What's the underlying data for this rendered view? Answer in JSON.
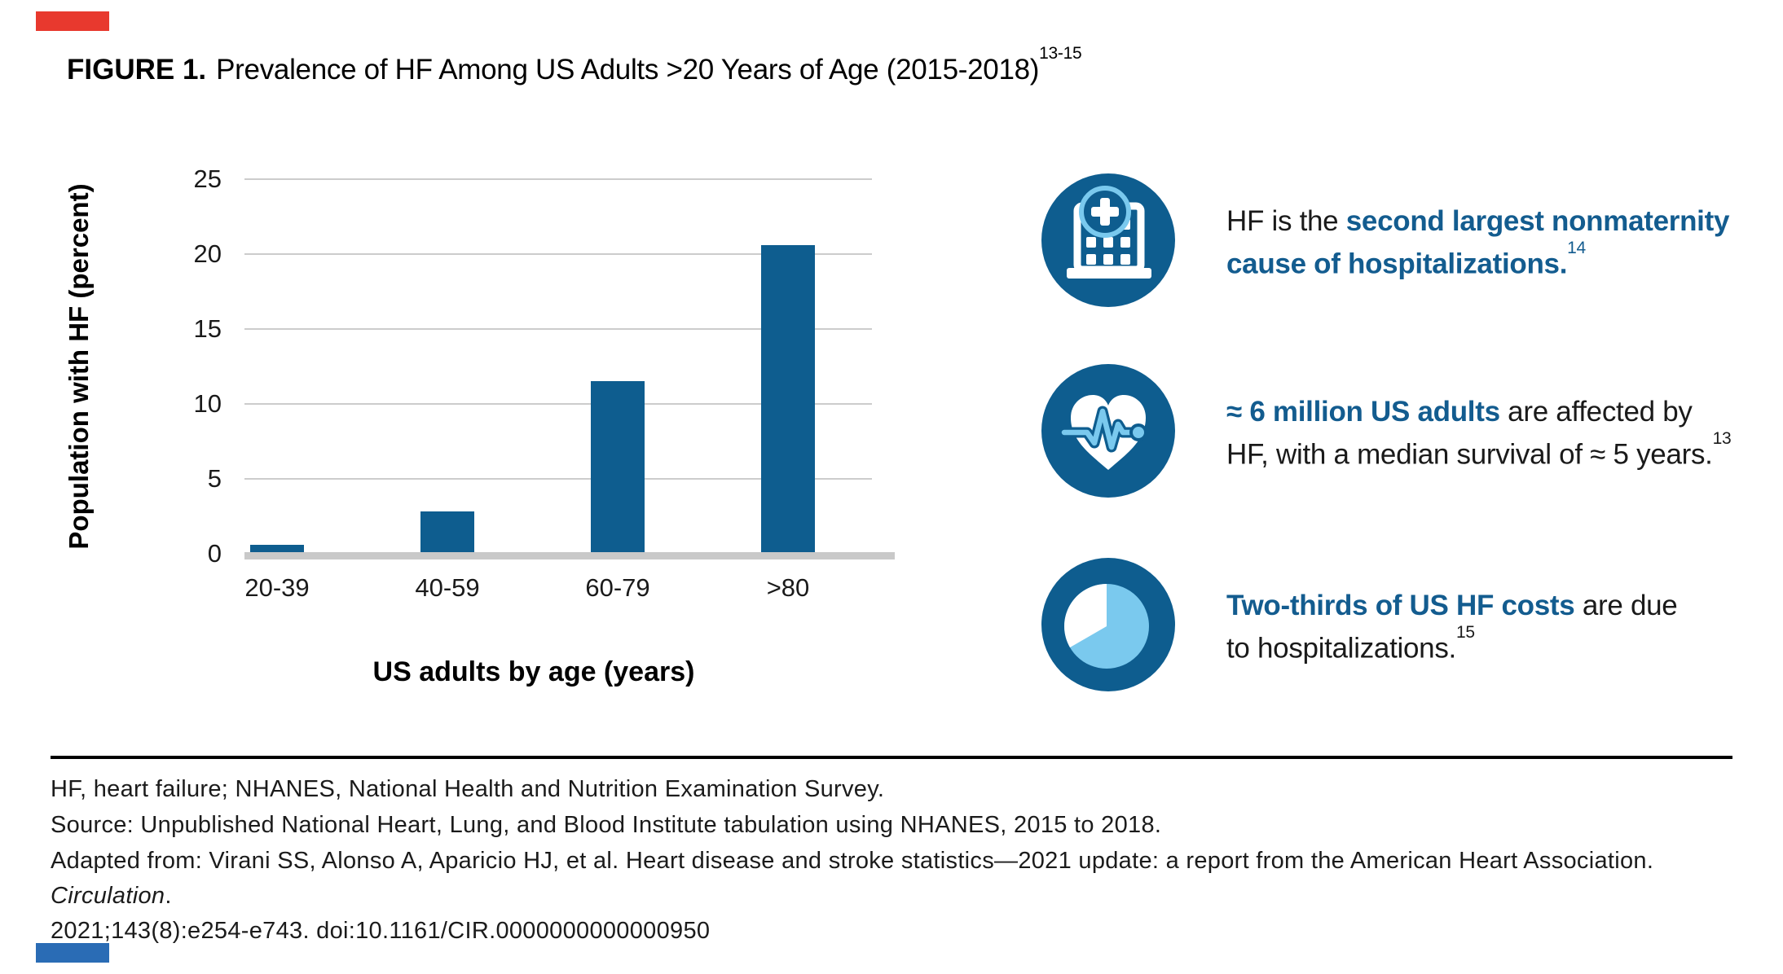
{
  "figure": {
    "label": "FIGURE 1.",
    "title": "Prevalence of HF Among US Adults >20 Years of Age (2015-2018)",
    "title_sup": "13-15"
  },
  "chart_data": {
    "type": "bar",
    "categories": [
      "20-39",
      "40-59",
      "60-79",
      ">80"
    ],
    "values": [
      0.5,
      2.7,
      11.4,
      20.5
    ],
    "xlabel": "US adults by age (years)",
    "ylabel": "Population with HF (percent)",
    "ylim": [
      0,
      25
    ],
    "yticks": [
      0,
      5,
      10,
      15,
      20,
      25
    ],
    "grid": true,
    "legend": "none",
    "bar_color": "#0E5D8F"
  },
  "callouts": [
    {
      "icon": "hospital-icon",
      "segments": [
        {
          "text": "HF is the ",
          "style": "plain"
        },
        {
          "text": "second largest nonmaternity\ncause of hospitalizations.",
          "style": "emphasis"
        },
        {
          "text": "14",
          "style": "sup_blue"
        }
      ]
    },
    {
      "icon": "heart-ekg-icon",
      "segments": [
        {
          "text": "≈ 6 million US adults",
          "style": "emphasis"
        },
        {
          "text": " are affected by\nHF, with a median survival of ≈ 5 years.",
          "style": "plain"
        },
        {
          "text": "13",
          "style": "sup"
        }
      ]
    },
    {
      "icon": "pie-chart-icon",
      "segments": [
        {
          "text": "Two-thirds of US HF costs",
          "style": "emphasis"
        },
        {
          "text": " are due\nto hospitalizations.",
          "style": "plain"
        },
        {
          "text": "15",
          "style": "sup"
        }
      ]
    }
  ],
  "footnotes": [
    [
      {
        "text": "HF, heart failure; NHANES, National Health and Nutrition Examination Survey.",
        "style": "plain"
      }
    ],
    [
      {
        "text": "Source: Unpublished National Heart, Lung, and Blood Institute tabulation using NHANES, 2015 to 2018.",
        "style": "plain"
      }
    ],
    [
      {
        "text": "Adapted from: Virani SS, Alonso A, Aparicio HJ, et al. Heart disease and stroke statistics—2021 update: a report from the American Heart Association. ",
        "style": "plain"
      },
      {
        "text": "Circulation",
        "style": "italic"
      },
      {
        "text": ".\n2021;143(8):e254-e743. doi:10.1161/CIR.0000000000000950",
        "style": "plain"
      }
    ]
  ],
  "colors": {
    "primary_blue": "#0E5D8F",
    "light_blue": "#7AC9EE",
    "emphasis_text_blue": "#135C8F",
    "gridline_gray": "#CCCCCC",
    "baseline_gray": "#C9C9C9",
    "top_marker_red": "#E8392E",
    "bottom_marker_blue": "#2A6CB5"
  }
}
